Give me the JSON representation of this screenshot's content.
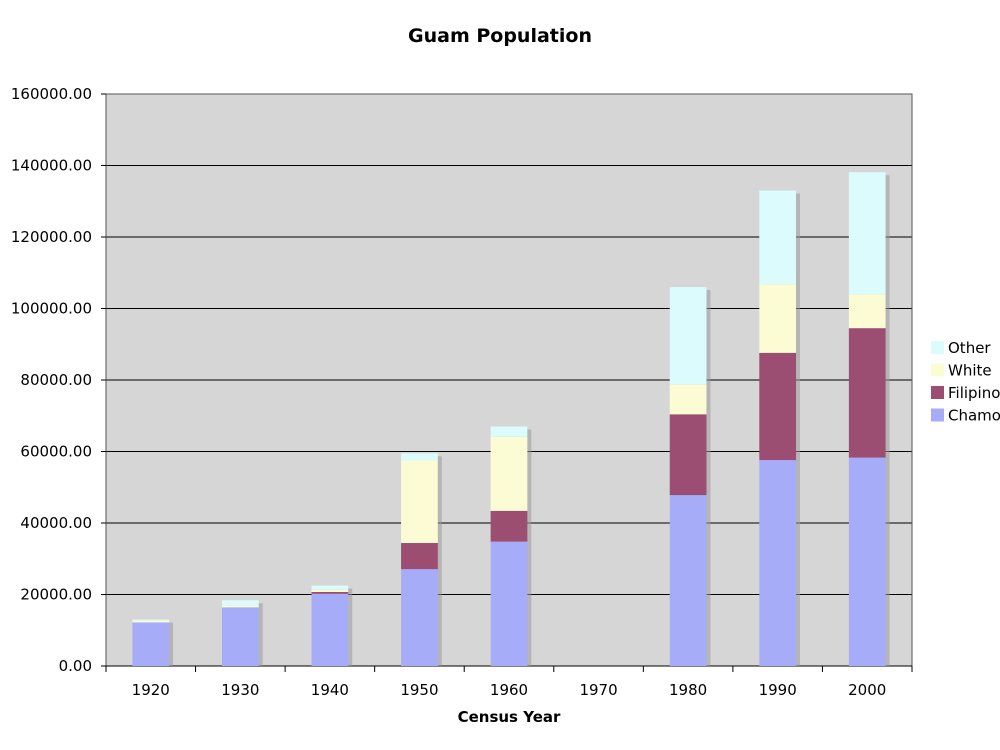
{
  "chart_data": {
    "type": "bar",
    "stacked": true,
    "title": "Guam Population",
    "xlabel": "Census Year",
    "ylabel": "",
    "categories": [
      "1920",
      "1930",
      "1940",
      "1950",
      "1960",
      "1970",
      "1980",
      "1990",
      "2000"
    ],
    "ylim": [
      0,
      160000
    ],
    "yticks": [
      "0.00",
      "20000.00",
      "40000.00",
      "60000.00",
      "80000.00",
      "100000.00",
      "120000.00",
      "140000.00",
      "160000.00"
    ],
    "grid": true,
    "legend_position": "right",
    "series": [
      {
        "name": "Chamorro",
        "label": "Chamo",
        "color": "#a6acf7",
        "values": [
          12200,
          16400,
          20200,
          27100,
          34800,
          0,
          47800,
          57600,
          58300
        ]
      },
      {
        "name": "Filipino",
        "label": "Filipino",
        "color": "#9b4d72",
        "values": [
          0,
          0,
          500,
          7300,
          8600,
          0,
          22600,
          30000,
          36200
        ]
      },
      {
        "name": "White",
        "label": "White",
        "color": "#fcfcd4",
        "values": [
          500,
          500,
          600,
          23100,
          20700,
          0,
          8300,
          19200,
          9500
        ]
      },
      {
        "name": "Other",
        "label": "Other",
        "color": "#dcfbfc",
        "values": [
          300,
          1500,
          1200,
          2000,
          2900,
          0,
          27300,
          26200,
          34100
        ]
      }
    ]
  },
  "colors": {
    "plot_background": "#d6d6d6",
    "gridline": "#000000",
    "bar_shadow": "#9a9a9a"
  }
}
